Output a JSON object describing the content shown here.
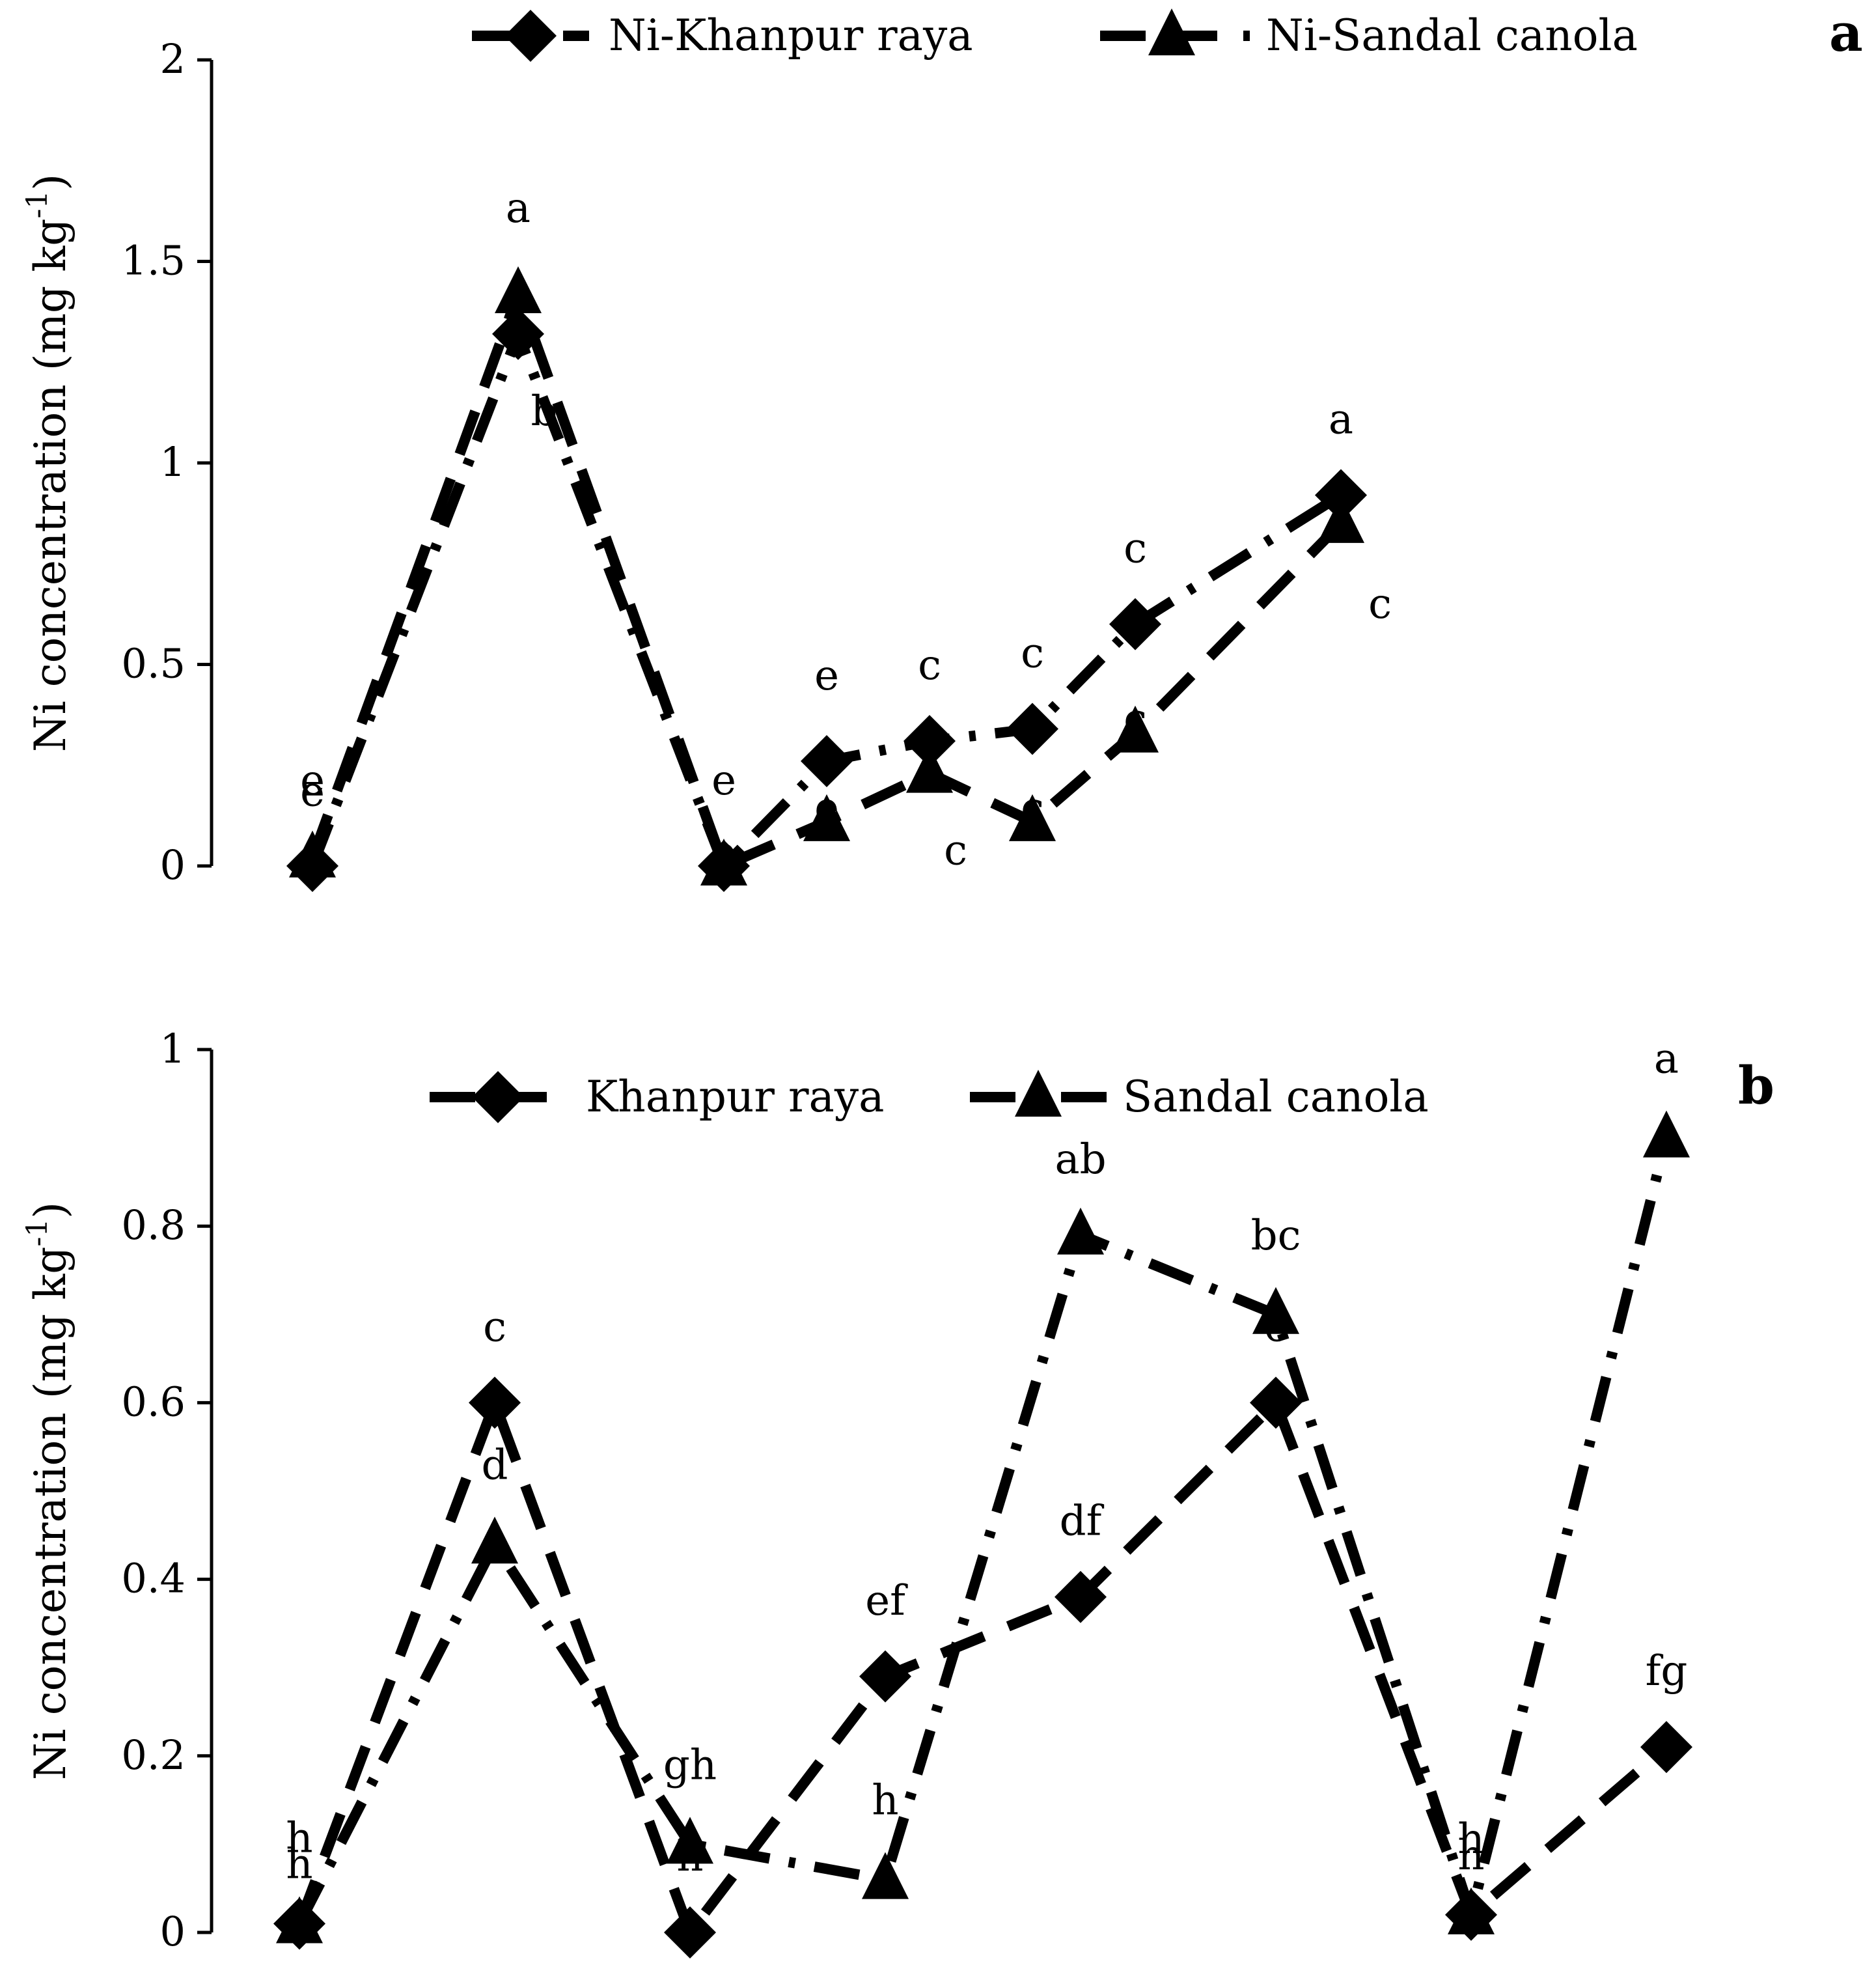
{
  "chart_data": [
    {
      "panel_label": "a",
      "type": "line",
      "ylabel": "Ni concentration (mg kg",
      "ylabel_superscript": "-1",
      "ylabel_suffix": ")",
      "ylim": [
        0,
        2
      ],
      "yticks": [
        "0",
        "0.5",
        "1",
        "1.5",
        "2"
      ],
      "x": [
        1,
        2,
        3,
        4,
        5,
        6,
        7,
        8,
        9
      ],
      "legend_position": "top",
      "grid": false,
      "series": [
        {
          "name": "Ni-Khanpur raya",
          "marker": "diamond",
          "dash": "long-dash-dot",
          "values": [
            0.0,
            1.32,
            0.0,
            0.26,
            0.31,
            0.34,
            0.6,
            0.92
          ],
          "x": [
            1,
            3,
            5,
            6,
            7,
            8,
            9,
            11
          ],
          "labels": [
            "e",
            "b",
            "e",
            "e",
            "c",
            "c",
            "c",
            "a"
          ]
        },
        {
          "name": "Ni-Sandal canola",
          "marker": "triangle",
          "dash": "long-dash",
          "values": [
            0.02,
            1.42,
            0.0,
            0.11,
            0.23,
            0.11,
            0.33,
            0.85
          ],
          "x": [
            1,
            3,
            5,
            6,
            7,
            8,
            9,
            11
          ],
          "labels": [
            "e",
            "a",
            "e",
            "e",
            "c",
            "c",
            "c",
            "c"
          ]
        }
      ]
    },
    {
      "panel_label": "b",
      "type": "line",
      "ylabel": "Ni concentration (mg kg",
      "ylabel_superscript": "-1",
      "ylabel_suffix": ")",
      "ylim": [
        0,
        1
      ],
      "yticks": [
        "0",
        "0.2",
        "0.4",
        "0.6",
        "0.8",
        "1"
      ],
      "legend_position": "top",
      "grid": false,
      "series": [
        {
          "name": "Khanpur raya",
          "marker": "diamond",
          "dash": "long-dash",
          "x": [
            1,
            2,
            3,
            4,
            5,
            6,
            7,
            8
          ],
          "values": [
            0.01,
            0.6,
            0.0,
            0.29,
            0.38,
            0.6,
            0.02,
            0.21
          ],
          "labels": [
            "h",
            "c",
            "h",
            "ef",
            "df",
            "c",
            "h",
            "fg"
          ]
        },
        {
          "name": "Sandal canola",
          "marker": "triangle",
          "dash": "long-dash-dot",
          "x": [
            1,
            2,
            3,
            4,
            5,
            6,
            7,
            8
          ],
          "values": [
            0.01,
            0.44,
            0.1,
            0.06,
            0.79,
            0.7,
            0.02,
            0.9
          ],
          "labels": [
            "h",
            "d",
            "gh",
            "h",
            "ab",
            "bc",
            "h",
            "a"
          ]
        }
      ]
    }
  ]
}
